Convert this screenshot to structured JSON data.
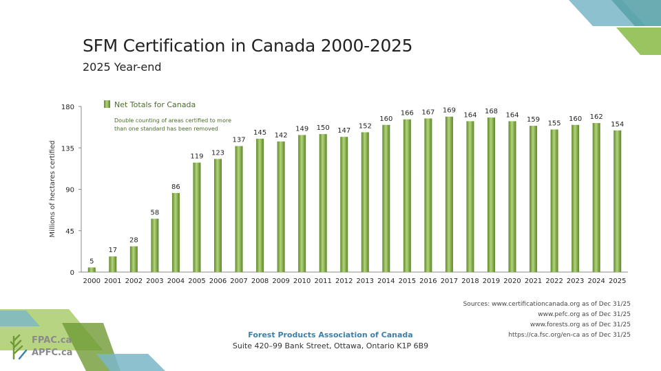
{
  "title": "SFM Certification in Canada 2000-2025",
  "subtitle": "2025 Year-end",
  "colors": {
    "bar": "#6f9a35",
    "bar_light": "#a9cd6b",
    "last_label": "#8a8a8a",
    "org_name": "#3d7fa8"
  },
  "chart_data": {
    "type": "bar",
    "categories": [
      "2000",
      "2001",
      "2002",
      "2003",
      "2004",
      "2005",
      "2006",
      "2007",
      "2008",
      "2009",
      "2010",
      "2011",
      "2012",
      "2013",
      "2014",
      "2015",
      "2016",
      "2017",
      "2018",
      "2019",
      "2020",
      "2021",
      "2022",
      "2023",
      "2024",
      "2025"
    ],
    "series": [
      {
        "name": "Net Totals for Canada",
        "values": [
          5,
          17,
          28,
          58,
          86,
          119,
          123,
          137,
          145,
          142,
          149,
          150,
          147,
          152,
          160,
          166,
          167,
          169,
          164,
          168,
          164,
          159,
          155,
          160,
          162,
          154
        ]
      }
    ],
    "data_labels": [
      "5",
      "17",
      "28",
      "58",
      "86",
      "119",
      "123",
      "137",
      "145",
      "142",
      "149",
      "150",
      "147",
      "152",
      "160",
      "166",
      "167",
      "169",
      "164",
      "168",
      "164",
      "159",
      "155",
      "160",
      "162",
      "154"
    ],
    "ylabel": "Millions of hectares certified",
    "xlabel": "",
    "ylim": [
      0,
      180
    ],
    "yticks": [
      0,
      45,
      90,
      135,
      180
    ],
    "ytick_labels": [
      "0",
      "45",
      "90",
      "135",
      "180"
    ],
    "legend": "top-left",
    "legend_label": "Net Totals for Canada",
    "note": [
      "Double counting of areas certified to more",
      "than one standard has been removed"
    ]
  },
  "sources": [
    "Sources: www.certificationcanada.org as of Dec 31/25",
    "www.pefc.org as of Dec 31/25",
    "www.forests.org as of Dec 31/25",
    "https://ca.fsc.org/en-ca as of Dec 31/25"
  ],
  "footer": {
    "org_name": "Forest Products Association of Canada",
    "address": "Suite 420–99 Bank Street, Ottawa, Ontario K1P 6B9",
    "logo_line1": "FPAC.ca",
    "logo_line2": "APFC.ca"
  }
}
